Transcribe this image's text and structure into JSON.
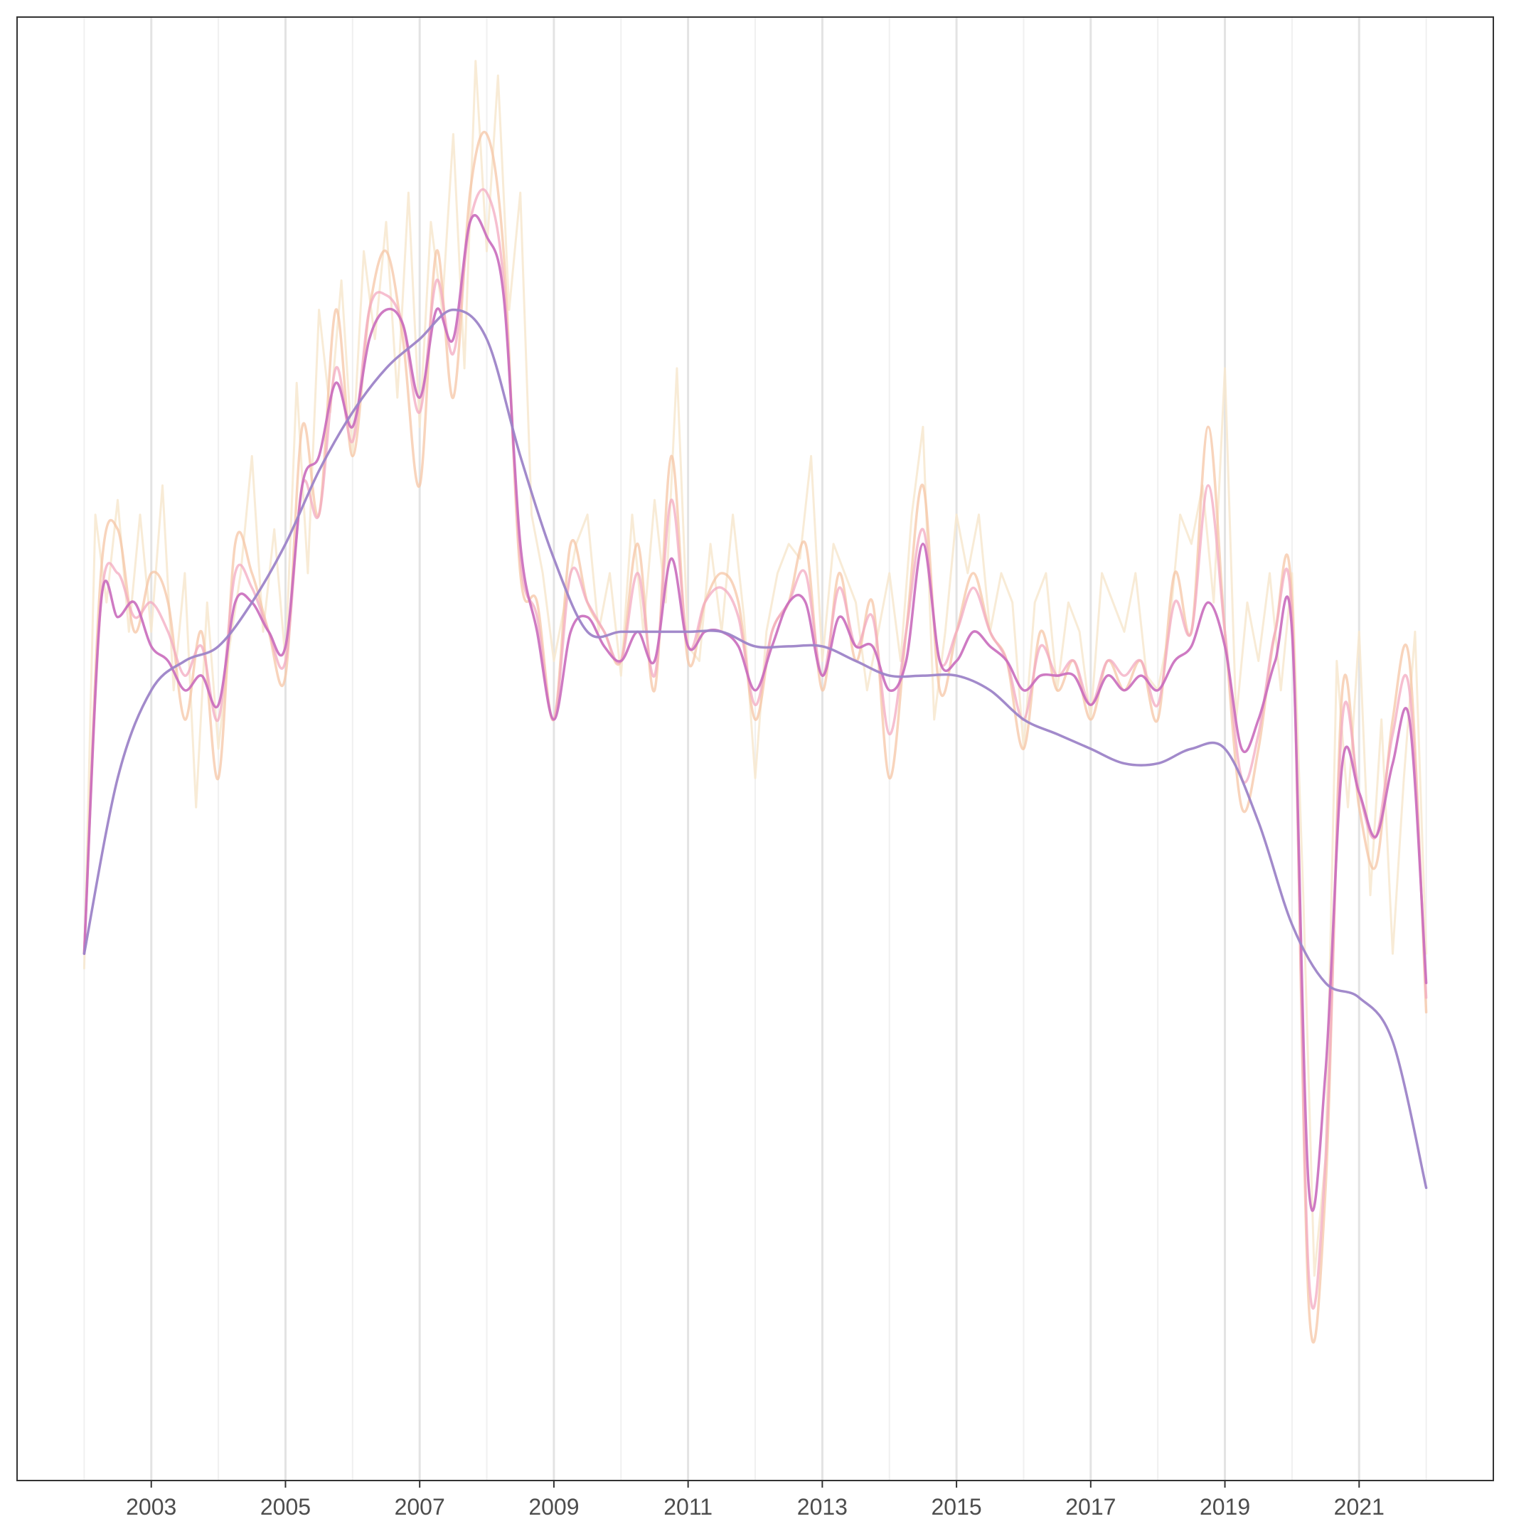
{
  "chart_data": {
    "type": "line",
    "title": "",
    "xlabel": "",
    "ylabel": "",
    "xlim": [
      2001.0,
      2023.0
    ],
    "ylim": [
      0,
      100
    ],
    "x_ticks": [
      "2003",
      "2005",
      "2007",
      "2009",
      "2011",
      "2013",
      "2015",
      "2017",
      "2019",
      "2021"
    ],
    "grid": {
      "vertical": true,
      "horizontal": false
    },
    "legend": "none",
    "colors": {
      "raw": "#f7e7cf",
      "smooth_light": "#f6c6a6",
      "smooth_medium": "#f3aac0",
      "smooth_strong": "#c96bbd",
      "trend": "#9d84c8"
    },
    "series": [
      {
        "key": "raw",
        "x": [
          2002.0,
          2002.167,
          2002.333,
          2002.5,
          2002.667,
          2002.833,
          2003.0,
          2003.167,
          2003.333,
          2003.5,
          2003.667,
          2003.833,
          2004.0,
          2004.167,
          2004.333,
          2004.5,
          2004.667,
          2004.833,
          2005.0,
          2005.167,
          2005.333,
          2005.5,
          2005.667,
          2005.833,
          2006.0,
          2006.167,
          2006.333,
          2006.5,
          2006.667,
          2006.833,
          2007.0,
          2007.167,
          2007.333,
          2007.5,
          2007.667,
          2007.833,
          2008.0,
          2008.167,
          2008.333,
          2008.5,
          2008.667,
          2008.833,
          2009.0,
          2009.167,
          2009.333,
          2009.5,
          2009.667,
          2009.833,
          2010.0,
          2010.167,
          2010.333,
          2010.5,
          2010.667,
          2010.833,
          2011.0,
          2011.167,
          2011.333,
          2011.5,
          2011.667,
          2011.833,
          2012.0,
          2012.167,
          2012.333,
          2012.5,
          2012.667,
          2012.833,
          2013.0,
          2013.167,
          2013.333,
          2013.5,
          2013.667,
          2013.833,
          2014.0,
          2014.167,
          2014.333,
          2014.5,
          2014.667,
          2014.833,
          2015.0,
          2015.167,
          2015.333,
          2015.5,
          2015.667,
          2015.833,
          2016.0,
          2016.167,
          2016.333,
          2016.5,
          2016.667,
          2016.833,
          2017.0,
          2017.167,
          2017.333,
          2017.5,
          2017.667,
          2017.833,
          2018.0,
          2018.167,
          2018.333,
          2018.5,
          2018.667,
          2018.833,
          2019.0,
          2019.167,
          2019.333,
          2019.5,
          2019.667,
          2019.833,
          2020.0,
          2020.167,
          2020.333,
          2020.5,
          2020.667,
          2020.833,
          2021.0,
          2021.167,
          2021.333,
          2021.5,
          2021.667,
          2021.833,
          2022.0
        ],
        "y": [
          35,
          66,
          60,
          67,
          58,
          66,
          58,
          68,
          54,
          62,
          46,
          60,
          50,
          57,
          62,
          70,
          58,
          65,
          56,
          75,
          62,
          80,
          73,
          82,
          70,
          84,
          78,
          86,
          74,
          88,
          72,
          86,
          80,
          92,
          76,
          97,
          84,
          96,
          80,
          88,
          66,
          62,
          56,
          60,
          64,
          66,
          58,
          62,
          55,
          66,
          58,
          67,
          60,
          76,
          57,
          56,
          64,
          58,
          66,
          59,
          48,
          58,
          62,
          64,
          63,
          70,
          56,
          64,
          62,
          60,
          54,
          58,
          62,
          56,
          66,
          72,
          52,
          58,
          66,
          62,
          66,
          58,
          62,
          60,
          50,
          60,
          62,
          54,
          60,
          58,
          52,
          62,
          60,
          58,
          62,
          55,
          54,
          58,
          66,
          64,
          68,
          60,
          76,
          52,
          60,
          56,
          62,
          54,
          62,
          40,
          14,
          22,
          56,
          46,
          58,
          40,
          52,
          36,
          48,
          58,
          36
        ]
      },
      {
        "key": "smooth_light",
        "x": [
          2002.0,
          2002.25,
          2002.5,
          2002.75,
          2003.0,
          2003.25,
          2003.5,
          2003.75,
          2004.0,
          2004.25,
          2004.5,
          2004.75,
          2005.0,
          2005.25,
          2005.5,
          2005.75,
          2006.0,
          2006.25,
          2006.5,
          2006.75,
          2007.0,
          2007.25,
          2007.5,
          2007.75,
          2008.0,
          2008.25,
          2008.5,
          2008.75,
          2009.0,
          2009.25,
          2009.5,
          2009.75,
          2010.0,
          2010.25,
          2010.5,
          2010.75,
          2011.0,
          2011.25,
          2011.5,
          2011.75,
          2012.0,
          2012.25,
          2012.5,
          2012.75,
          2013.0,
          2013.25,
          2013.5,
          2013.75,
          2014.0,
          2014.25,
          2014.5,
          2014.75,
          2015.0,
          2015.25,
          2015.5,
          2015.75,
          2016.0,
          2016.25,
          2016.5,
          2016.75,
          2017.0,
          2017.25,
          2017.5,
          2017.75,
          2018.0,
          2018.25,
          2018.5,
          2018.75,
          2019.0,
          2019.25,
          2019.5,
          2019.75,
          2020.0,
          2020.25,
          2020.5,
          2020.75,
          2021.0,
          2021.25,
          2021.5,
          2021.75,
          2022.0
        ],
        "y": [
          36,
          62,
          65,
          58,
          62,
          60,
          52,
          58,
          48,
          64,
          62,
          58,
          55,
          72,
          66,
          80,
          70,
          80,
          84,
          78,
          68,
          84,
          74,
          88,
          92,
          84,
          62,
          60,
          52,
          64,
          60,
          58,
          56,
          64,
          54,
          70,
          56,
          60,
          62,
          60,
          52,
          58,
          60,
          64,
          54,
          62,
          56,
          60,
          48,
          58,
          68,
          54,
          58,
          62,
          58,
          56,
          50,
          58,
          54,
          56,
          52,
          56,
          54,
          56,
          52,
          62,
          58,
          72,
          58,
          46,
          50,
          58,
          60,
          12,
          20,
          54,
          46,
          42,
          52,
          56,
          32
        ]
      },
      {
        "key": "smooth_medium",
        "x": [
          2002.0,
          2002.25,
          2002.5,
          2002.75,
          2003.0,
          2003.25,
          2003.5,
          2003.75,
          2004.0,
          2004.25,
          2004.5,
          2004.75,
          2005.0,
          2005.25,
          2005.5,
          2005.75,
          2006.0,
          2006.25,
          2006.5,
          2006.75,
          2007.0,
          2007.25,
          2007.5,
          2007.75,
          2008.0,
          2008.25,
          2008.5,
          2008.75,
          2009.0,
          2009.25,
          2009.5,
          2009.75,
          2010.0,
          2010.25,
          2010.5,
          2010.75,
          2011.0,
          2011.25,
          2011.5,
          2011.75,
          2012.0,
          2012.25,
          2012.5,
          2012.75,
          2013.0,
          2013.25,
          2013.5,
          2013.75,
          2014.0,
          2014.25,
          2014.5,
          2014.75,
          2015.0,
          2015.25,
          2015.5,
          2015.75,
          2016.0,
          2016.25,
          2016.5,
          2016.75,
          2017.0,
          2017.25,
          2017.5,
          2017.75,
          2018.0,
          2018.25,
          2018.5,
          2018.75,
          2019.0,
          2019.25,
          2019.5,
          2019.75,
          2020.0,
          2020.25,
          2020.5,
          2020.75,
          2021.0,
          2021.25,
          2021.5,
          2021.75,
          2022.0
        ],
        "y": [
          36,
          60,
          62,
          59,
          60,
          58,
          55,
          57,
          52,
          62,
          61,
          58,
          56,
          68,
          66,
          76,
          71,
          80,
          81,
          79,
          73,
          82,
          77,
          86,
          88,
          82,
          63,
          59,
          52,
          62,
          60,
          58,
          56,
          62,
          55,
          67,
          57,
          60,
          61,
          59,
          53,
          58,
          60,
          62,
          55,
          61,
          57,
          59,
          51,
          58,
          65,
          56,
          58,
          61,
          58,
          56,
          52,
          57,
          55,
          56,
          53,
          56,
          55,
          56,
          53,
          60,
          58,
          68,
          58,
          48,
          51,
          58,
          59,
          14,
          22,
          52,
          47,
          44,
          51,
          54,
          33
        ]
      },
      {
        "key": "smooth_strong",
        "x": [
          2002.0,
          2002.25,
          2002.5,
          2002.75,
          2003.0,
          2003.25,
          2003.5,
          2003.75,
          2004.0,
          2004.25,
          2004.5,
          2004.75,
          2005.0,
          2005.25,
          2005.5,
          2005.75,
          2006.0,
          2006.25,
          2006.5,
          2006.75,
          2007.0,
          2007.25,
          2007.5,
          2007.75,
          2008.0,
          2008.25,
          2008.5,
          2008.75,
          2009.0,
          2009.25,
          2009.5,
          2009.75,
          2010.0,
          2010.25,
          2010.5,
          2010.75,
          2011.0,
          2011.25,
          2011.5,
          2011.75,
          2012.0,
          2012.25,
          2012.5,
          2012.75,
          2013.0,
          2013.25,
          2013.5,
          2013.75,
          2014.0,
          2014.25,
          2014.5,
          2014.75,
          2015.0,
          2015.25,
          2015.5,
          2015.75,
          2016.0,
          2016.25,
          2016.5,
          2016.75,
          2017.0,
          2017.25,
          2017.5,
          2017.75,
          2018.0,
          2018.25,
          2018.5,
          2018.75,
          2019.0,
          2019.25,
          2019.5,
          2019.75,
          2020.0,
          2020.25,
          2020.5,
          2020.75,
          2021.0,
          2021.25,
          2021.5,
          2021.75,
          2022.0
        ],
        "y": [
          36,
          60,
          59,
          60,
          57,
          56,
          54,
          55,
          53,
          60,
          60,
          58,
          57,
          68,
          70,
          75,
          72,
          78,
          80,
          79,
          74,
          80,
          78,
          86,
          85,
          81,
          64,
          58,
          52,
          58,
          59,
          57,
          56,
          58,
          56,
          63,
          57,
          58,
          58,
          57,
          54,
          57,
          60,
          60,
          55,
          59,
          57,
          57,
          54,
          56,
          64,
          56,
          56,
          58,
          57,
          56,
          54,
          55,
          55,
          55,
          53,
          55,
          54,
          55,
          54,
          56,
          57,
          60,
          57,
          50,
          52,
          56,
          58,
          20,
          28,
          49,
          47,
          44,
          49,
          52,
          34
        ]
      },
      {
        "key": "trend",
        "x": [
          2002.0,
          2002.5,
          2003.0,
          2003.5,
          2004.0,
          2004.5,
          2005.0,
          2005.5,
          2006.0,
          2006.5,
          2007.0,
          2007.5,
          2008.0,
          2008.5,
          2009.0,
          2009.5,
          2010.0,
          2010.5,
          2011.0,
          2011.5,
          2012.0,
          2012.5,
          2013.0,
          2013.5,
          2014.0,
          2014.5,
          2015.0,
          2015.5,
          2016.0,
          2016.5,
          2017.0,
          2017.5,
          2018.0,
          2018.5,
          2019.0,
          2019.5,
          2020.0,
          2020.5,
          2021.0,
          2021.5,
          2022.0
        ],
        "y": [
          36,
          48,
          54,
          56,
          57,
          60,
          64,
          69,
          73,
          76,
          78,
          80,
          78,
          70,
          63,
          58,
          58,
          58,
          58,
          58,
          57,
          57,
          57,
          56,
          55,
          55,
          55,
          54,
          52,
          51,
          50,
          49,
          49,
          50,
          50,
          45,
          38,
          34,
          33,
          30,
          20
        ]
      }
    ]
  }
}
